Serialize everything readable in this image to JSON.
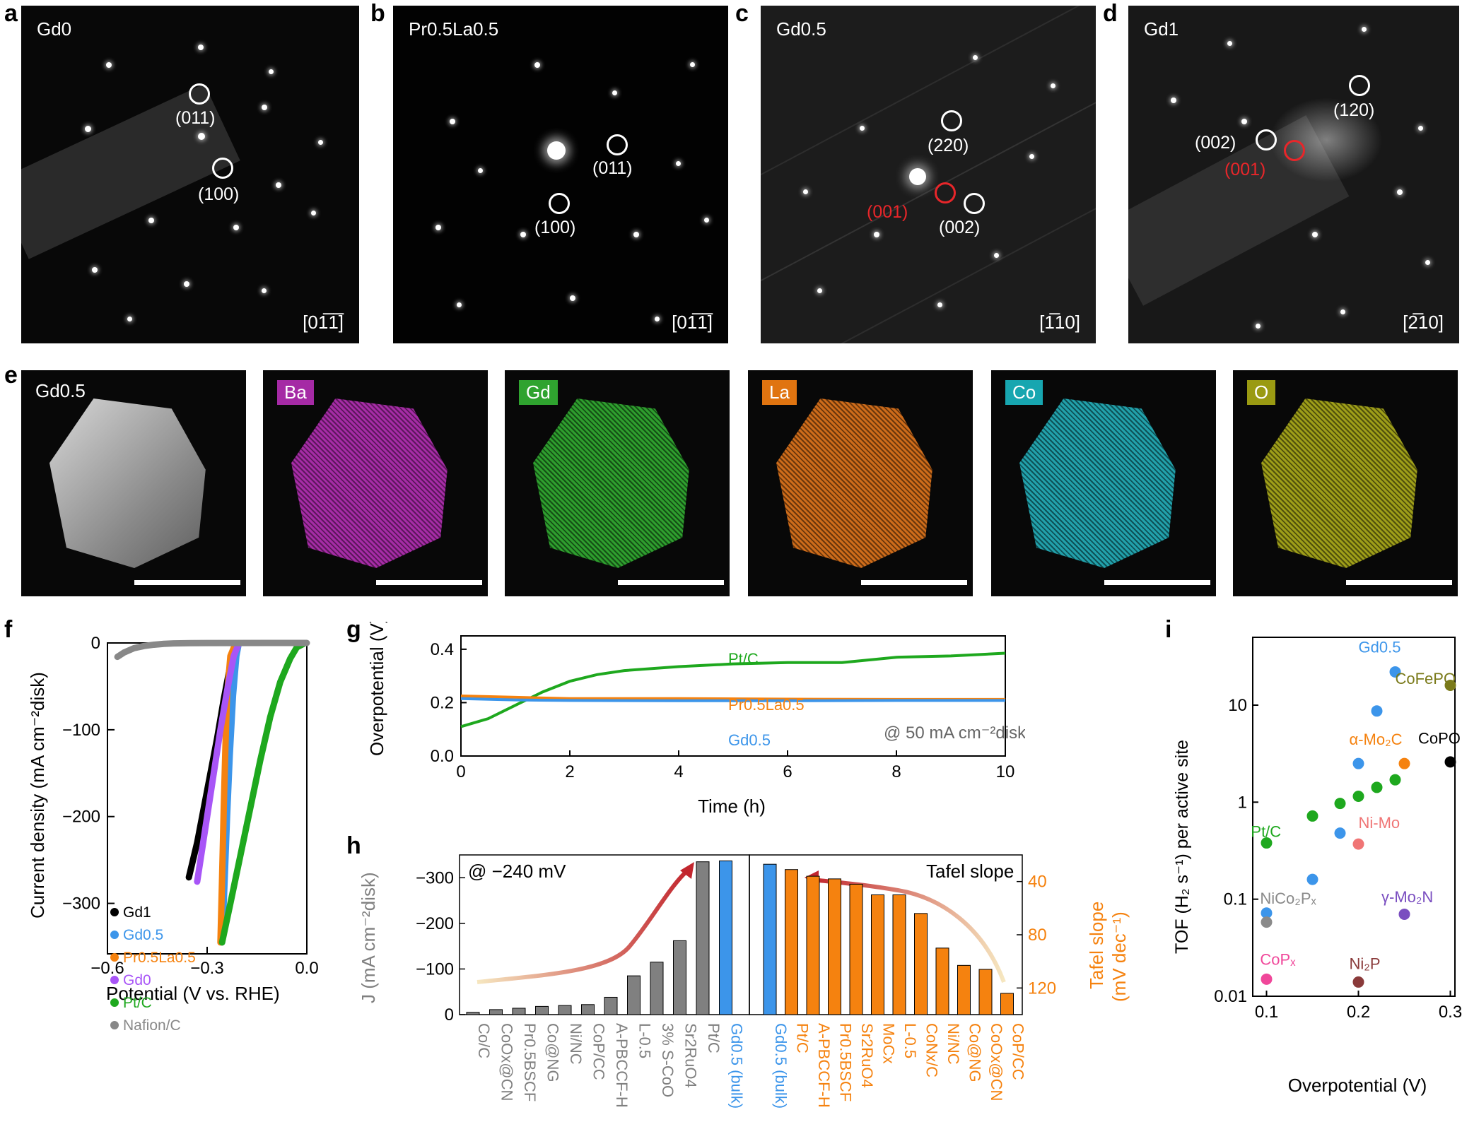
{
  "panel_labels": {
    "a": "a",
    "b": "b",
    "c": "c",
    "d": "d",
    "e": "e",
    "f": "f",
    "g": "g",
    "h": "h",
    "i": "i"
  },
  "saed": [
    {
      "name": "Gd0",
      "zone": "[01̅1̅]",
      "spots": [
        {
          "hkl": "(011)",
          "red": false
        },
        {
          "hkl": "(100)",
          "red": false
        }
      ]
    },
    {
      "name": "Pr0.5La0.5",
      "zone": "[01̅1̅]",
      "spots": [
        {
          "hkl": "(011)",
          "red": false
        },
        {
          "hkl": "(100)",
          "red": false
        }
      ]
    },
    {
      "name": "Gd0.5",
      "zone": "[1̅10]",
      "spots": [
        {
          "hkl": "(220)",
          "red": false
        },
        {
          "hkl": "(001)",
          "red": true
        },
        {
          "hkl": "(002)",
          "red": false
        }
      ]
    },
    {
      "name": "Gd1",
      "zone": "[2̅10]",
      "spots": [
        {
          "hkl": "(120)",
          "red": false
        },
        {
          "hkl": "(002)",
          "red": false
        },
        {
          "hkl": "(001)",
          "red": true
        }
      ]
    }
  ],
  "eds": {
    "image_label": "Gd0.5",
    "maps": [
      {
        "element": "Ba",
        "color": "#c233c2",
        "tag_bg": "#a52aa5"
      },
      {
        "element": "Gd",
        "color": "#35b835",
        "tag_bg": "#2fa32f"
      },
      {
        "element": "La",
        "color": "#f07d1e",
        "tag_bg": "#e07410"
      },
      {
        "element": "Co",
        "color": "#27bcc8",
        "tag_bg": "#17a6b0"
      },
      {
        "element": "O",
        "color": "#b8b81c",
        "tag_bg": "#9a9a12"
      }
    ]
  },
  "colors": {
    "gd1": "#000000",
    "gd05": "#3c95ea",
    "prla": "#f5820f",
    "gd0": "#a855f7",
    "ptc": "#1ea81e",
    "nafion": "#888888",
    "red": "#c2262e",
    "orange": "#f5820f",
    "blue": "#3c95ea",
    "grey": "#808080"
  },
  "chart_data": [
    {
      "panel": "f",
      "type": "line",
      "xlabel": "Potential (V vs. RHE)",
      "ylabel": "Current density (mA cm⁻²disk)",
      "xlim": [
        -0.6,
        0.0
      ],
      "ylim": [
        -350,
        0
      ],
      "xticks": [
        "−0.6",
        "−0.3",
        "0.0"
      ],
      "yticks": [
        "0",
        "−100",
        "−200",
        "−300"
      ],
      "series": [
        {
          "name": "Gd1",
          "color": "#000000",
          "x": [
            -0.355,
            -0.33,
            -0.3,
            -0.27,
            -0.25,
            -0.23,
            -0.22,
            -0.21
          ],
          "y": [
            -270,
            -230,
            -170,
            -110,
            -65,
            -25,
            -8,
            -1
          ]
        },
        {
          "name": "Gd0.5",
          "color": "#3c95ea",
          "x": [
            -0.255,
            -0.248,
            -0.24,
            -0.232,
            -0.222,
            -0.212,
            -0.205
          ],
          "y": [
            -345,
            -280,
            -200,
            -130,
            -60,
            -15,
            -1
          ]
        },
        {
          "name": "Pr0.5La0.5",
          "color": "#f5820f",
          "x": [
            -0.26,
            -0.255,
            -0.25,
            -0.245,
            -0.24,
            -0.23,
            -0.215
          ],
          "y": [
            -345,
            -270,
            -190,
            -120,
            -60,
            -15,
            -1
          ]
        },
        {
          "name": "Gd0",
          "color": "#a855f7",
          "x": [
            -0.33,
            -0.32,
            -0.3,
            -0.28,
            -0.26,
            -0.24,
            -0.22,
            -0.205
          ],
          "y": [
            -275,
            -250,
            -200,
            -150,
            -100,
            -55,
            -15,
            -1
          ]
        },
        {
          "name": "Pt/C",
          "color": "#1ea81e",
          "x": [
            -0.255,
            -0.23,
            -0.2,
            -0.17,
            -0.14,
            -0.11,
            -0.08,
            -0.05,
            -0.03,
            -0.01
          ],
          "y": [
            -345,
            -300,
            -245,
            -190,
            -135,
            -85,
            -45,
            -18,
            -5,
            -1
          ]
        },
        {
          "name": "Nafion/C",
          "color": "#888888",
          "x": [
            -0.57,
            -0.55,
            -0.52,
            -0.49,
            -0.46,
            -0.43,
            -0.4,
            -0.35,
            -0.3,
            0.0
          ],
          "y": [
            -16,
            -11,
            -6,
            -3.5,
            -2,
            -1,
            -0.5,
            -0.2,
            -0.1,
            0
          ]
        }
      ]
    },
    {
      "panel": "g",
      "type": "line",
      "xlabel": "Time (h)",
      "ylabel": "Overpotential (V)",
      "annotation": "@ 50 mA cm⁻²disk",
      "xlim": [
        0,
        10
      ],
      "ylim": [
        0,
        0.45
      ],
      "xticks": [
        "0",
        "2",
        "4",
        "6",
        "8",
        "10"
      ],
      "yticks": [
        "0.0",
        "0.2",
        "0.4"
      ],
      "series": [
        {
          "name": "Pt/C",
          "color": "#1ea81e",
          "x": [
            0,
            0.5,
            1,
            1.5,
            2,
            2.5,
            3,
            4,
            5,
            6,
            7,
            7.5,
            8,
            9,
            10
          ],
          "y": [
            0.11,
            0.14,
            0.19,
            0.24,
            0.28,
            0.305,
            0.32,
            0.335,
            0.345,
            0.35,
            0.35,
            0.36,
            0.37,
            0.375,
            0.385
          ]
        },
        {
          "name": "Pr0.5La0.5",
          "color": "#f5820f",
          "x": [
            0,
            1,
            2,
            4,
            6,
            8,
            10
          ],
          "y": [
            0.225,
            0.22,
            0.215,
            0.215,
            0.213,
            0.212,
            0.212
          ]
        },
        {
          "name": "Gd0.5",
          "color": "#3c95ea",
          "x": [
            0,
            1,
            2,
            4,
            6,
            8,
            10
          ],
          "y": [
            0.215,
            0.21,
            0.208,
            0.207,
            0.207,
            0.208,
            0.208
          ]
        }
      ]
    },
    {
      "panel": "h-left",
      "type": "bar",
      "title": "@ −240 mV",
      "ylabel": "J (mA cm⁻²disk)",
      "ylim": [
        0,
        -350
      ],
      "yticks": [
        "−300",
        "−200",
        "−100",
        "0"
      ],
      "categories": [
        "Co/C",
        "CoOx@CN",
        "Pr0.5BSCF",
        "Co@NG",
        "Ni/NC",
        "CoP/CC",
        "A-PBCCF-H",
        "L-0.5",
        "3% S-CoO",
        "Sr2RuO4",
        "Pt/C",
        "Gd0.5 (bulk)"
      ],
      "values": [
        -5,
        -11,
        -14,
        -18,
        -20,
        -22,
        -38,
        -85,
        -115,
        -162,
        -335,
        -337
      ]
    },
    {
      "panel": "h-right",
      "type": "bar",
      "title": "Tafel slope",
      "ylabel": "Tafel slope (mV dec⁻¹)",
      "ylim": [
        140,
        20
      ],
      "yticks": [
        "40",
        "80",
        "120"
      ],
      "categories": [
        "Gd0.5 (bulk)",
        "Pt/C",
        "A-PBCCF-H",
        "Pr0.5BSCF",
        "Sr2RuO4",
        "MoCx",
        "L-0.5",
        "CoNx/C",
        "Ni/NC",
        "Co@NG",
        "CoOx@CN",
        "CoP/CC"
      ],
      "values": [
        27,
        31,
        36,
        38,
        42,
        50,
        50,
        64,
        90,
        103,
        106,
        124
      ]
    },
    {
      "panel": "i",
      "type": "scatter",
      "xlabel": "Overpotential (V)",
      "ylabel": "TOF (H₂ s⁻¹) per active site",
      "xlim": [
        0.085,
        0.305
      ],
      "ylim": [
        0.01,
        50
      ],
      "yscale": "log",
      "xticks": [
        "0.1",
        "0.2",
        "0.3"
      ],
      "yticks": [
        "0.01",
        "0.1",
        "1",
        "10"
      ],
      "series": [
        {
          "name": "Gd0.5",
          "color": "#3c95ea",
          "points": [
            [
              0.1,
              0.072
            ],
            [
              0.15,
              0.16
            ],
            [
              0.18,
              0.48
            ],
            [
              0.2,
              2.5
            ],
            [
              0.22,
              8.7
            ],
            [
              0.24,
              22
            ]
          ]
        },
        {
          "name": "Pt/C",
          "color": "#1ea81e",
          "points": [
            [
              0.1,
              0.38
            ],
            [
              0.15,
              0.72
            ],
            [
              0.18,
              0.97
            ],
            [
              0.2,
              1.15
            ],
            [
              0.22,
              1.42
            ],
            [
              0.24,
              1.7
            ]
          ]
        },
        {
          "name": "CoFePO",
          "color": "#7a7a1a",
          "points": [
            [
              0.3,
              16
            ]
          ]
        },
        {
          "name": "CoPO",
          "color": "#000000",
          "points": [
            [
              0.3,
              2.6
            ]
          ]
        },
        {
          "name": "α-Mo2C",
          "color": "#f5820f",
          "points": [
            [
              0.25,
              2.5
            ]
          ]
        },
        {
          "name": "Ni-Mo",
          "color": "#f07575",
          "points": [
            [
              0.2,
              0.37
            ]
          ]
        },
        {
          "name": "γ-Mo2N",
          "color": "#7a4ec0",
          "points": [
            [
              0.25,
              0.07
            ]
          ]
        },
        {
          "name": "NiCo2Px",
          "color": "#8a8a8a",
          "points": [
            [
              0.1,
              0.058
            ]
          ]
        },
        {
          "name": "CoPx",
          "color": "#f0479a",
          "points": [
            [
              0.1,
              0.015
            ]
          ]
        },
        {
          "name": "Ni2P",
          "color": "#8a3a3a",
          "points": [
            [
              0.2,
              0.014
            ]
          ]
        }
      ]
    }
  ],
  "h_misc": {
    "left_title": "@ −240 mV",
    "right_title": "Tafel slope",
    "right_ylabel_1": "Tafel slope",
    "right_ylabel_2": "(mV dec⁻¹)"
  },
  "i_labels": [
    {
      "text": "Gd0.5",
      "color": "#3c95ea"
    },
    {
      "text": "CoFePO",
      "color": "#7a7a1a"
    },
    {
      "text": "CoPO",
      "color": "#000000"
    },
    {
      "text": "α-Mo₂C",
      "color": "#f5820f"
    },
    {
      "text": "Pt/C",
      "color": "#1ea81e"
    },
    {
      "text": "Ni-Mo",
      "color": "#f07575"
    },
    {
      "text": "NiCo₂Pₓ",
      "color": "#8a8a8a"
    },
    {
      "text": "γ-Mo₂N",
      "color": "#7a4ec0"
    },
    {
      "text": "CoPₓ",
      "color": "#f0479a"
    },
    {
      "text": "Ni₂P",
      "color": "#8a3a3a"
    }
  ],
  "g_labels": {
    "ptc": "Pt/C",
    "prla": "Pr0.5La0.5",
    "gd05": "Gd0.5"
  }
}
